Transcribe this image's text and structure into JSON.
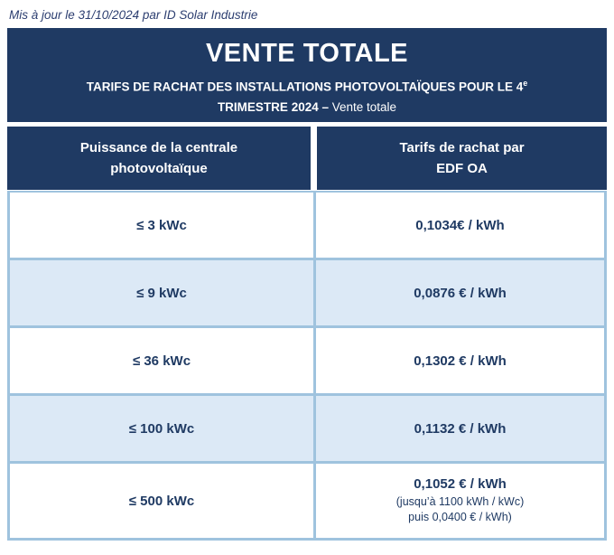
{
  "page": {
    "updated_note": "Mis à jour le 31/10/2024 par ID Solar Industrie"
  },
  "header": {
    "title": "VENTE TOTALE",
    "subtitle_line1": "TARIFS DE RACHAT DES INSTALLATIONS PHOTOVOLTAÏQUES POUR LE 4",
    "subtitle_sup": "e",
    "subtitle_line2_bold": "TRIMESTRE 2024 –",
    "subtitle_line2_regular": "Vente totale"
  },
  "table": {
    "columns": [
      {
        "line1": "Puissance de la centrale",
        "line2": "photovoltaïque"
      },
      {
        "line1": "Tarifs de rachat par",
        "line2": "EDF OA"
      }
    ],
    "rows": [
      {
        "power": "≤ 3 kWc",
        "tariff": "0,1034€ / kWh"
      },
      {
        "power": "≤ 9 kWc",
        "tariff": "0,0876 € / kWh"
      },
      {
        "power": "≤ 36 kWc",
        "tariff": "0,1302 € / kWh"
      },
      {
        "power": "≤ 100 kWc",
        "tariff": "0,1132 € / kWh"
      },
      {
        "power": "≤ 500 kWc",
        "tariff": "0,1052 € / kWh",
        "tariff_note1": "(jusqu’à 1100 kWh / kWc)",
        "tariff_note2": "puis 0,0400 € / kWh)"
      }
    ]
  },
  "colors": {
    "navy": "#1F3A63",
    "row_alt_blue": "#DCE9F6",
    "table_border_blue": "#9FC3DE",
    "text_navy": "#1F3A63",
    "white": "#FFFFFF"
  }
}
